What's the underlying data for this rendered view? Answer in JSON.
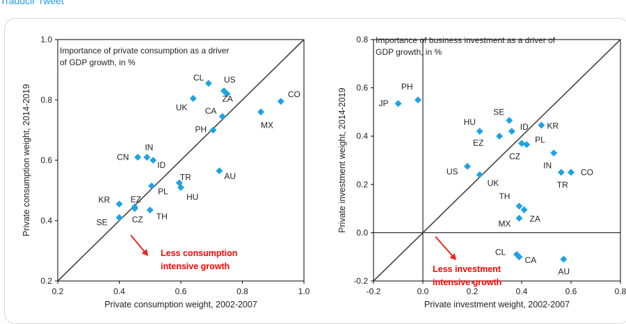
{
  "tweet": {
    "translate_link": "Traducir Tweet"
  },
  "chart_data": [
    {
      "type": "scatter",
      "inset_title": [
        "Importance of private consumption as a driver",
        "of GDP growth, in %"
      ],
      "xlabel": "Private consumption weight, 2002-2007",
      "ylabel": "Private consumption weight, 2014-2019",
      "xlim": [
        0.2,
        1.0
      ],
      "ylim": [
        0.2,
        1.0
      ],
      "xticks": [
        "0.2",
        "0.4",
        "0.6",
        "0.8",
        "1.0"
      ],
      "yticks": [
        "0.2",
        "0.4",
        "0.6",
        "0.8",
        "1.0"
      ],
      "diagonal": true,
      "marker_color": "#1fa2e5",
      "annotation": [
        "Less consumption",
        "intensive growth"
      ],
      "points": [
        {
          "label": "CL",
          "x": 0.69,
          "y": 0.855
        },
        {
          "label": "US",
          "x": 0.74,
          "y": 0.83
        },
        {
          "label": "ZA",
          "x": 0.75,
          "y": 0.82
        },
        {
          "label": "UK",
          "x": 0.64,
          "y": 0.805
        },
        {
          "label": "CO",
          "x": 0.925,
          "y": 0.795
        },
        {
          "label": "MX",
          "x": 0.86,
          "y": 0.76
        },
        {
          "label": "CA",
          "x": 0.735,
          "y": 0.745
        },
        {
          "label": "PH",
          "x": 0.705,
          "y": 0.7
        },
        {
          "label": "CN",
          "x": 0.46,
          "y": 0.61
        },
        {
          "label": "IN",
          "x": 0.49,
          "y": 0.61
        },
        {
          "label": "ID",
          "x": 0.51,
          "y": 0.6
        },
        {
          "label": "AU",
          "x": 0.725,
          "y": 0.565
        },
        {
          "label": "TR",
          "x": 0.595,
          "y": 0.525
        },
        {
          "label": "PL",
          "x": 0.505,
          "y": 0.515
        },
        {
          "label": "HU",
          "x": 0.6,
          "y": 0.51
        },
        {
          "label": "KR",
          "x": 0.4,
          "y": 0.455
        },
        {
          "label": "EZ",
          "x": 0.45,
          "y": 0.44
        },
        {
          "label": "CZ",
          "x": 0.45,
          "y": 0.445
        },
        {
          "label": "TH",
          "x": 0.5,
          "y": 0.435
        },
        {
          "label": "SE",
          "x": 0.4,
          "y": 0.41
        }
      ]
    },
    {
      "type": "scatter",
      "inset_title": [
        "Importance of business investment as a driver of",
        "GDP growth, in %"
      ],
      "xlabel": "Private investment weight, 2002-2007",
      "ylabel": "Private investment weight, 2014-2019",
      "xlim": [
        -0.2,
        0.8
      ],
      "ylim": [
        -0.2,
        0.8
      ],
      "xticks": [
        "-0.2",
        "0.0",
        "0.2",
        "0.4",
        "0.6",
        "0.8"
      ],
      "yticks": [
        "-0.2",
        "0.0",
        "0.2",
        "0.4",
        "0.6",
        "0.8"
      ],
      "diagonal": true,
      "marker_color": "#1fa2e5",
      "annotation": [
        "Less investment",
        "intensive growth"
      ],
      "points": [
        {
          "label": "PH",
          "x": -0.02,
          "y": 0.55
        },
        {
          "label": "JP",
          "x": -0.1,
          "y": 0.535
        },
        {
          "label": "SE",
          "x": 0.35,
          "y": 0.465
        },
        {
          "label": "KR",
          "x": 0.48,
          "y": 0.445
        },
        {
          "label": "HU",
          "x": 0.23,
          "y": 0.42
        },
        {
          "label": "ID",
          "x": 0.36,
          "y": 0.42
        },
        {
          "label": "EZ",
          "x": 0.31,
          "y": 0.4
        },
        {
          "label": "PL",
          "x": 0.42,
          "y": 0.365
        },
        {
          "label": "CZ",
          "x": 0.4,
          "y": 0.37
        },
        {
          "label": "IN",
          "x": 0.53,
          "y": 0.33
        },
        {
          "label": "US",
          "x": 0.18,
          "y": 0.275
        },
        {
          "label": "UK",
          "x": 0.23,
          "y": 0.24
        },
        {
          "label": "CO",
          "x": 0.6,
          "y": 0.25
        },
        {
          "label": "TR",
          "x": 0.56,
          "y": 0.25
        },
        {
          "label": "TH",
          "x": 0.39,
          "y": 0.11
        },
        {
          "label": "ZA",
          "x": 0.41,
          "y": 0.095
        },
        {
          "label": "MX",
          "x": 0.39,
          "y": 0.06
        },
        {
          "label": "CL",
          "x": 0.38,
          "y": -0.09
        },
        {
          "label": "CA",
          "x": 0.39,
          "y": -0.1
        },
        {
          "label": "AU",
          "x": 0.57,
          "y": -0.11
        }
      ]
    }
  ]
}
